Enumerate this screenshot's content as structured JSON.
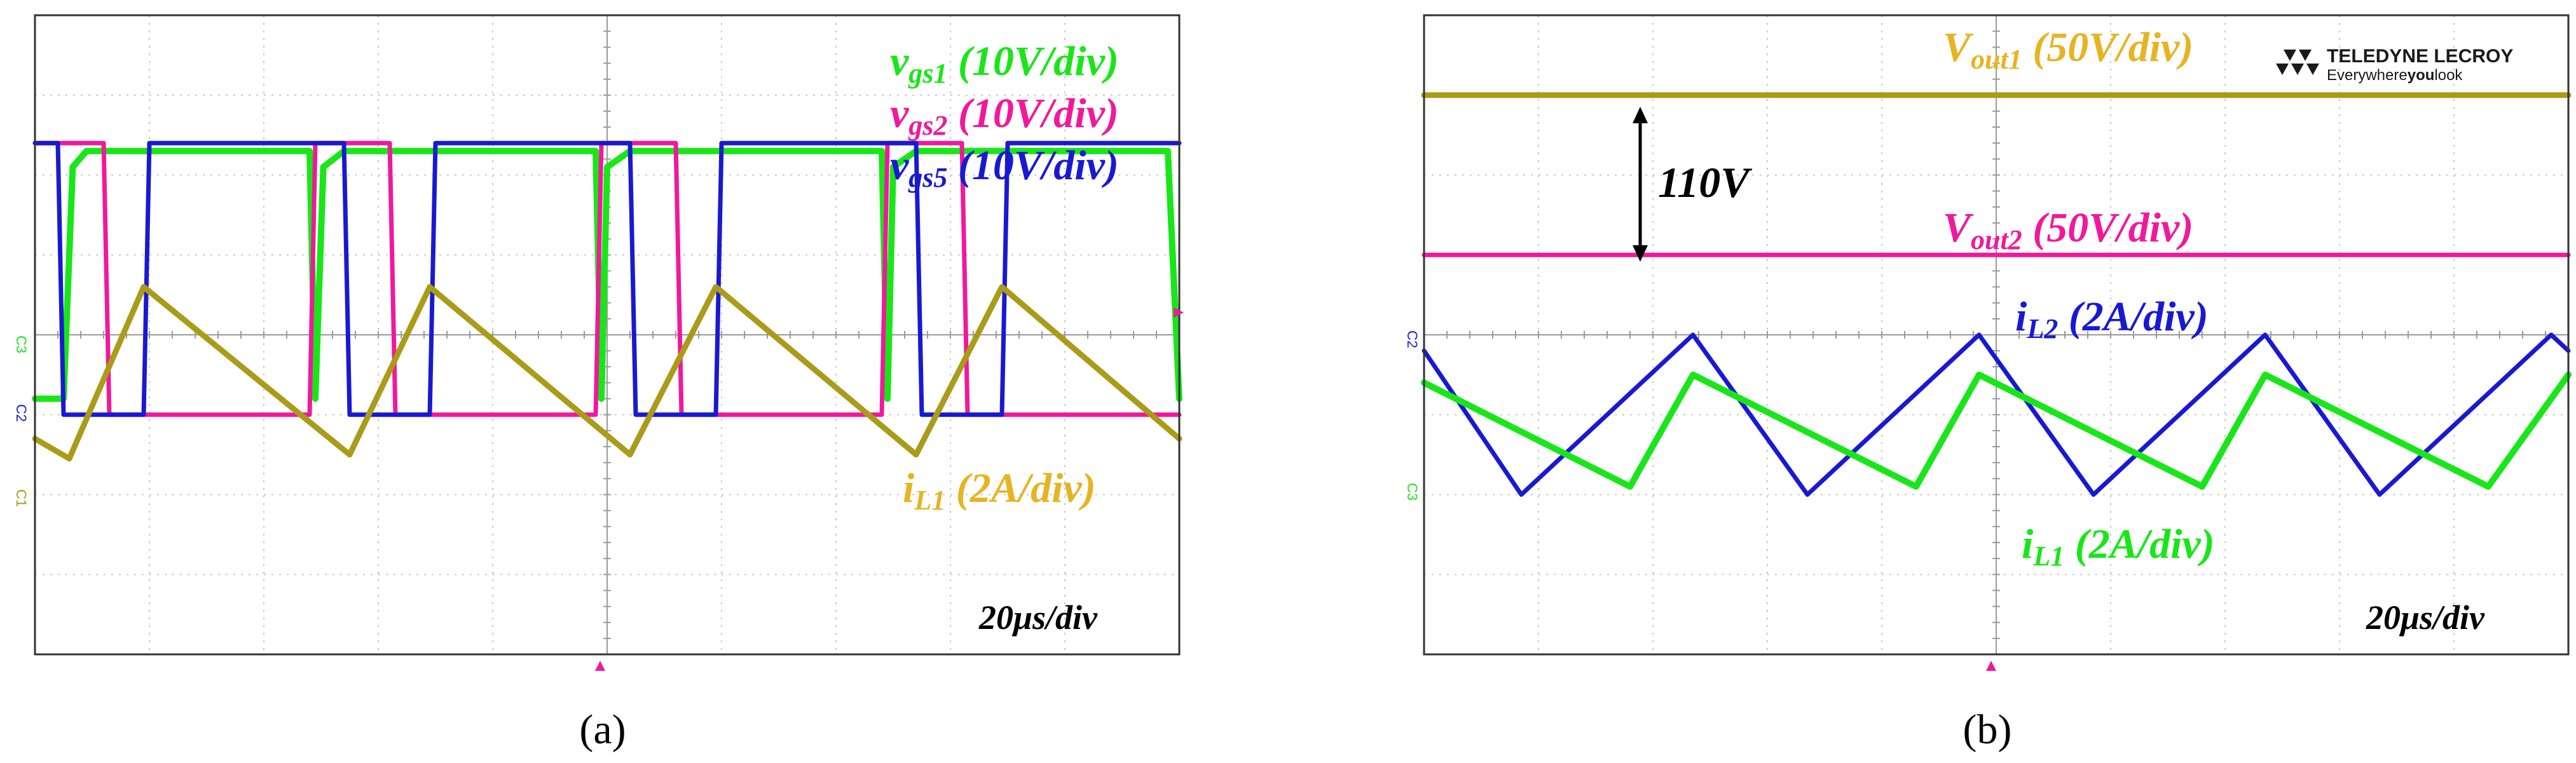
{
  "colors": {
    "green": "#19e619",
    "magenta": "#f0199b",
    "blue": "#1919d2",
    "olive": "#aa9b19",
    "gold": "#e6b423",
    "grid": "#c8c8c8",
    "frame": "#333333"
  },
  "panel_a": {
    "caption": "(a)",
    "timebase": "20μs/div",
    "labels": {
      "vgs1": {
        "sym": "v",
        "sub": "gs1",
        "scale": " (10V/div)"
      },
      "vgs2": {
        "sym": "v",
        "sub": "gs2",
        "scale": " (10V/div)"
      },
      "vgs5": {
        "sym": "v",
        "sub": "gs5",
        "scale": " (10V/div)"
      },
      "iL1": {
        "sym": "i",
        "sub": "L1",
        "scale": " (2A/div)"
      }
    },
    "channel_markers": {
      "c3": "C3",
      "c2": "C2",
      "c1": "C1"
    }
  },
  "panel_b": {
    "caption": "(b)",
    "timebase": "20μs/div",
    "annotation": "110V",
    "brand": {
      "name": "TELEDYNE LECROY",
      "tagline_a": "Everywhere",
      "tagline_b": "you",
      "tagline_c": "look"
    },
    "labels": {
      "vout1": {
        "sym": "V",
        "sub": "out1",
        "scale": " (50V/div)"
      },
      "vout2": {
        "sym": "V",
        "sub": "out2",
        "scale": " (50V/div)"
      },
      "iL2": {
        "sym": "i",
        "sub": "L2",
        "scale": " (2A/div)"
      },
      "iL1": {
        "sym": "i",
        "sub": "L1",
        "scale": " (2A/div)"
      }
    },
    "channel_markers": {
      "c2": "C2",
      "c3": "C3"
    }
  },
  "chart_data": [
    {
      "type": "line",
      "panel": "a",
      "x_unit": "div",
      "y_unit": "div",
      "xlim": [
        0,
        10
      ],
      "ylim": [
        -4,
        4
      ],
      "grid": true,
      "timebase": "20μs/div",
      "series": [
        {
          "name": "vgs1 (10V/div)",
          "color": "green",
          "x": [
            0,
            0.25,
            0.33,
            0.45,
            2.4,
            2.45,
            2.52,
            2.7,
            4.9,
            4.95,
            5.0,
            5.2,
            7.4,
            7.45,
            7.5,
            7.7,
            9.9,
            10
          ],
          "y": [
            -0.8,
            -0.8,
            2.1,
            2.3,
            2.3,
            -0.8,
            2.1,
            2.3,
            2.3,
            -0.8,
            2.1,
            2.3,
            2.3,
            -0.8,
            2.1,
            2.3,
            2.3,
            -0.8
          ]
        },
        {
          "name": "vgs2 (10V/div)",
          "color": "magenta",
          "x": [
            0,
            0.6,
            0.65,
            2.4,
            2.45,
            3.1,
            3.15,
            4.9,
            4.95,
            5.6,
            5.65,
            7.4,
            7.45,
            8.1,
            8.15,
            10
          ],
          "y": [
            2.4,
            2.4,
            -1.0,
            -1.0,
            2.4,
            2.4,
            -1.0,
            -1.0,
            2.4,
            2.4,
            -1.0,
            -1.0,
            2.4,
            2.4,
            -1.0,
            -1.0
          ]
        },
        {
          "name": "vgs5 (10V/div)",
          "color": "blue",
          "x": [
            0,
            0.2,
            0.25,
            0.95,
            1.0,
            2.7,
            2.75,
            3.45,
            3.5,
            5.2,
            5.25,
            5.95,
            6.0,
            7.7,
            7.75,
            8.45,
            8.5,
            10
          ],
          "y": [
            2.4,
            2.4,
            -1.0,
            -1.0,
            2.4,
            2.4,
            -1.0,
            -1.0,
            2.4,
            2.4,
            -1.0,
            -1.0,
            2.4,
            2.4,
            -1.0,
            -1.0,
            2.4,
            2.4
          ]
        },
        {
          "name": "iL1 (2A/div)",
          "color": "olive",
          "x": [
            0,
            0.3,
            0.95,
            2.75,
            3.45,
            5.2,
            5.95,
            7.7,
            8.45,
            10
          ],
          "y": [
            -1.3,
            -1.55,
            0.6,
            -1.5,
            0.6,
            -1.5,
            0.6,
            -1.5,
            0.6,
            -1.3
          ]
        }
      ]
    },
    {
      "type": "line",
      "panel": "b",
      "x_unit": "div",
      "y_unit": "div",
      "xlim": [
        0,
        10
      ],
      "ylim": [
        -4,
        4
      ],
      "grid": true,
      "timebase": "20μs/div",
      "series": [
        {
          "name": "Vout1 (50V/div)",
          "color": "olive",
          "x": [
            0,
            10
          ],
          "y": [
            3.0,
            3.0
          ]
        },
        {
          "name": "Vout2 (50V/div)",
          "color": "magenta",
          "x": [
            0,
            10
          ],
          "y": [
            1.0,
            1.0
          ]
        },
        {
          "name": "iL2 (2A/div)",
          "color": "blue",
          "x": [
            0,
            0.85,
            2.35,
            3.35,
            4.85,
            5.85,
            7.35,
            8.35,
            9.85,
            10
          ],
          "y": [
            -0.2,
            -2.0,
            0.0,
            -2.0,
            0.0,
            -2.0,
            0.0,
            -2.0,
            0.0,
            -0.2
          ]
        },
        {
          "name": "iL1 (2A/div)",
          "color": "green",
          "x": [
            0,
            1.8,
            2.35,
            4.3,
            4.85,
            6.8,
            7.35,
            9.3,
            10
          ],
          "y": [
            -0.6,
            -1.9,
            -0.5,
            -1.9,
            -0.5,
            -1.9,
            -0.5,
            -1.9,
            -0.5
          ]
        }
      ]
    }
  ]
}
